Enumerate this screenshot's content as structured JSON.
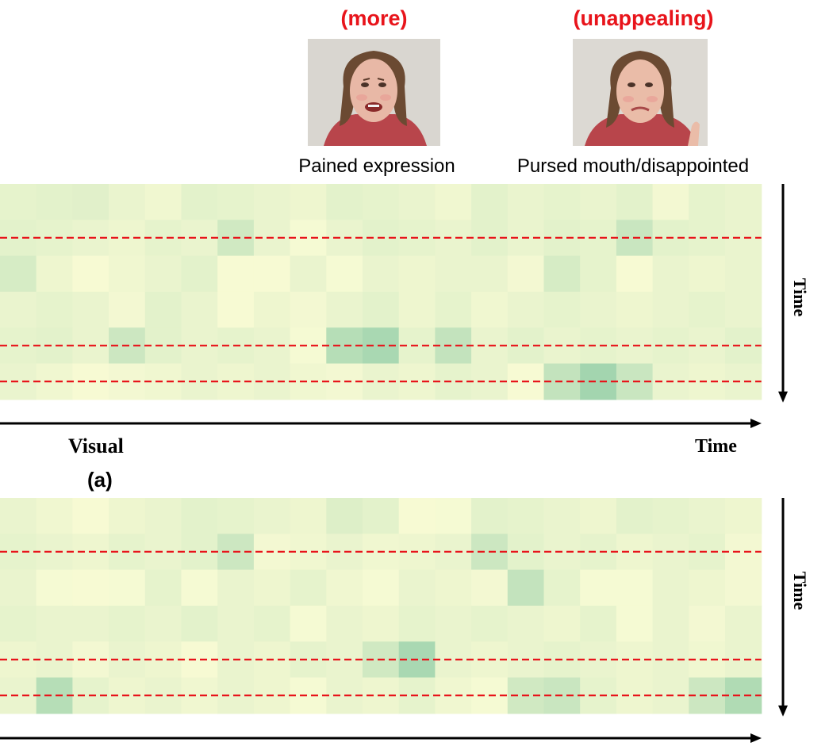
{
  "faces": [
    {
      "emotion_word": "(more)",
      "caption": "Pained expression",
      "image_icon": "woman-pained-face-photo"
    },
    {
      "emotion_word": "(unappealing)",
      "caption": "Pursed mouth/disappointed",
      "image_icon": "woman-disappointed-face-photo"
    }
  ],
  "panel_a": {
    "axis_label_x": "Time",
    "axis_label_y": "Time",
    "modality_label": "Visual",
    "panel_label": "(a)"
  },
  "panel_b": {
    "axis_label_y": "Time"
  },
  "colors": {
    "emotion_word": "#e8141b",
    "dashed_line": "#e8141b",
    "heat_low": "#fdfdd6",
    "heat_high": "#7cc49e"
  },
  "chart_data": [
    {
      "type": "heatmap",
      "name": "",
      "rows": 6,
      "cols": 21,
      "highlighted_rows": [
        1,
        4,
        5
      ],
      "values": [
        [
          0.18,
          0.2,
          0.22,
          0.15,
          0.1,
          0.2,
          0.18,
          0.15,
          0.12,
          0.2,
          0.18,
          0.15,
          0.1,
          0.2,
          0.15,
          0.18,
          0.15,
          0.2,
          0.08,
          0.18,
          0.15
        ],
        [
          0.2,
          0.18,
          0.15,
          0.12,
          0.18,
          0.15,
          0.35,
          0.15,
          0.06,
          0.15,
          0.2,
          0.18,
          0.15,
          0.2,
          0.15,
          0.2,
          0.18,
          0.4,
          0.2,
          0.18,
          0.15
        ],
        [
          0.3,
          0.12,
          0.05,
          0.1,
          0.15,
          0.2,
          0.05,
          0.05,
          0.15,
          0.06,
          0.15,
          0.12,
          0.15,
          0.15,
          0.08,
          0.3,
          0.18,
          0.05,
          0.15,
          0.12,
          0.15
        ],
        [
          0.15,
          0.18,
          0.15,
          0.08,
          0.2,
          0.15,
          0.05,
          0.12,
          0.08,
          0.15,
          0.2,
          0.12,
          0.18,
          0.1,
          0.15,
          0.18,
          0.15,
          0.12,
          0.15,
          0.18,
          0.15
        ],
        [
          0.18,
          0.2,
          0.15,
          0.38,
          0.2,
          0.15,
          0.18,
          0.15,
          0.06,
          0.55,
          0.65,
          0.18,
          0.45,
          0.15,
          0.2,
          0.15,
          0.18,
          0.15,
          0.18,
          0.15,
          0.2
        ],
        [
          0.15,
          0.1,
          0.05,
          0.08,
          0.1,
          0.15,
          0.12,
          0.15,
          0.1,
          0.08,
          0.15,
          0.12,
          0.18,
          0.15,
          0.05,
          0.45,
          0.7,
          0.4,
          0.15,
          0.12,
          0.15
        ]
      ]
    },
    {
      "type": "heatmap",
      "name": "",
      "rows": 6,
      "cols": 21,
      "highlighted_rows": [
        1,
        4,
        5
      ],
      "values": [
        [
          0.15,
          0.1,
          0.05,
          0.12,
          0.15,
          0.2,
          0.18,
          0.15,
          0.12,
          0.25,
          0.2,
          0.05,
          0.06,
          0.2,
          0.18,
          0.15,
          0.12,
          0.2,
          0.18,
          0.15,
          0.12
        ],
        [
          0.18,
          0.15,
          0.12,
          0.18,
          0.15,
          0.2,
          0.38,
          0.08,
          0.1,
          0.15,
          0.1,
          0.12,
          0.15,
          0.38,
          0.2,
          0.15,
          0.18,
          0.12,
          0.15,
          0.18,
          0.08
        ],
        [
          0.15,
          0.06,
          0.05,
          0.06,
          0.18,
          0.06,
          0.15,
          0.12,
          0.18,
          0.1,
          0.06,
          0.15,
          0.12,
          0.08,
          0.45,
          0.18,
          0.06,
          0.06,
          0.15,
          0.12,
          0.08
        ],
        [
          0.18,
          0.15,
          0.15,
          0.18,
          0.15,
          0.2,
          0.15,
          0.18,
          0.06,
          0.15,
          0.12,
          0.18,
          0.15,
          0.18,
          0.15,
          0.12,
          0.18,
          0.06,
          0.15,
          0.08,
          0.15
        ],
        [
          0.12,
          0.15,
          0.08,
          0.15,
          0.12,
          0.05,
          0.15,
          0.12,
          0.18,
          0.15,
          0.35,
          0.65,
          0.15,
          0.12,
          0.15,
          0.18,
          0.15,
          0.12,
          0.15,
          0.1,
          0.15
        ],
        [
          0.15,
          0.55,
          0.18,
          0.12,
          0.15,
          0.1,
          0.15,
          0.12,
          0.06,
          0.15,
          0.12,
          0.18,
          0.1,
          0.06,
          0.35,
          0.4,
          0.18,
          0.12,
          0.15,
          0.38,
          0.6
        ]
      ]
    }
  ]
}
